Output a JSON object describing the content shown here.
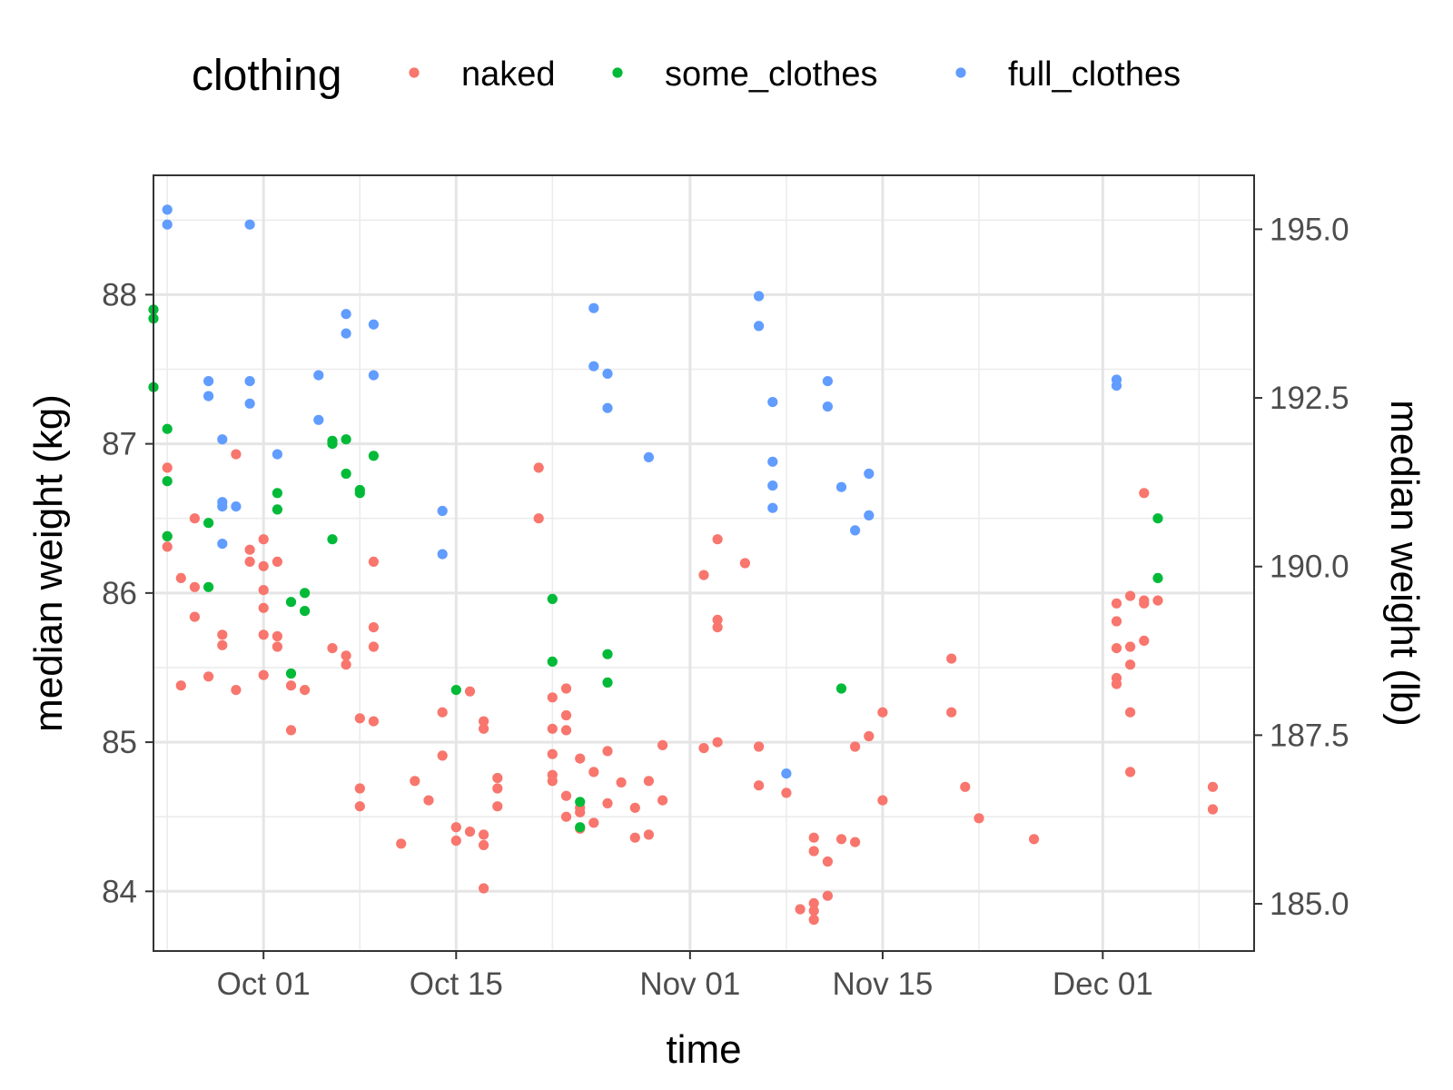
{
  "chart_data": {
    "type": "scatter",
    "xlabel": "time",
    "ylabel": "median weight (kg)",
    "y2label": "median weight (lb)",
    "legend": {
      "title": "clothing",
      "position": "top"
    },
    "grid": true,
    "xlim": [
      "2018-09-23",
      "2018-12-12"
    ],
    "ylim": [
      83.6,
      88.8
    ],
    "y2lim": [
      184.3,
      195.8
    ],
    "x_ticks": [
      {
        "date": "2018-10-01",
        "label": "Oct 01"
      },
      {
        "date": "2018-10-15",
        "label": "Oct 15"
      },
      {
        "date": "2018-11-01",
        "label": "Nov 01"
      },
      {
        "date": "2018-11-15",
        "label": "Nov 15"
      },
      {
        "date": "2018-12-01",
        "label": "Dec 01"
      }
    ],
    "x_minor_ticks": [
      "2018-09-24",
      "2018-10-08",
      "2018-10-22",
      "2018-11-08",
      "2018-11-22",
      "2018-12-08"
    ],
    "y_ticks": [
      84,
      85,
      86,
      87,
      88
    ],
    "y_tick_labels": [
      "84",
      "85",
      "86",
      "87",
      "88"
    ],
    "y_minor_ticks": [
      84.5,
      85.5,
      86.5,
      87.5,
      88.5
    ],
    "y2_ticks": [
      185.0,
      187.5,
      190.0,
      192.5,
      195.0
    ],
    "y2_tick_labels": [
      "185.0",
      "187.5",
      "190.0",
      "192.5",
      "195.0"
    ],
    "series": [
      {
        "name": "naked",
        "color": "#F8766D",
        "points": [
          [
            "2018-09-24",
            86.84
          ],
          [
            "2018-09-24",
            86.38
          ],
          [
            "2018-09-24",
            86.31
          ],
          [
            "2018-09-25",
            86.1
          ],
          [
            "2018-09-25",
            85.38
          ],
          [
            "2018-09-26",
            86.5
          ],
          [
            "2018-09-26",
            86.04
          ],
          [
            "2018-09-26",
            85.84
          ],
          [
            "2018-09-27",
            85.44
          ],
          [
            "2018-09-28",
            85.72
          ],
          [
            "2018-09-28",
            85.65
          ],
          [
            "2018-09-29",
            85.35
          ],
          [
            "2018-09-29",
            86.93
          ],
          [
            "2018-09-30",
            86.29
          ],
          [
            "2018-09-30",
            86.21
          ],
          [
            "2018-10-01",
            86.36
          ],
          [
            "2018-10-01",
            86.18
          ],
          [
            "2018-10-01",
            86.02
          ],
          [
            "2018-10-01",
            85.9
          ],
          [
            "2018-10-01",
            85.72
          ],
          [
            "2018-10-01",
            85.45
          ],
          [
            "2018-10-02",
            86.21
          ],
          [
            "2018-10-02",
            85.71
          ],
          [
            "2018-10-02",
            85.64
          ],
          [
            "2018-10-03",
            85.38
          ],
          [
            "2018-10-03",
            85.08
          ],
          [
            "2018-10-04",
            85.35
          ],
          [
            "2018-10-06",
            85.63
          ],
          [
            "2018-10-07",
            85.52
          ],
          [
            "2018-10-07",
            85.58
          ],
          [
            "2018-10-08",
            85.16
          ],
          [
            "2018-10-08",
            84.69
          ],
          [
            "2018-10-08",
            84.57
          ],
          [
            "2018-10-09",
            86.21
          ],
          [
            "2018-10-09",
            85.77
          ],
          [
            "2018-10-09",
            85.64
          ],
          [
            "2018-10-09",
            85.14
          ],
          [
            "2018-10-11",
            84.32
          ],
          [
            "2018-10-12",
            84.74
          ],
          [
            "2018-10-13",
            84.61
          ],
          [
            "2018-10-14",
            85.2
          ],
          [
            "2018-10-14",
            84.91
          ],
          [
            "2018-10-15",
            84.43
          ],
          [
            "2018-10-15",
            84.34
          ],
          [
            "2018-10-16",
            85.34
          ],
          [
            "2018-10-16",
            84.4
          ],
          [
            "2018-10-17",
            85.14
          ],
          [
            "2018-10-17",
            85.09
          ],
          [
            "2018-10-17",
            84.38
          ],
          [
            "2018-10-17",
            84.31
          ],
          [
            "2018-10-17",
            84.02
          ],
          [
            "2018-10-18",
            84.76
          ],
          [
            "2018-10-18",
            84.69
          ],
          [
            "2018-10-18",
            84.57
          ],
          [
            "2018-10-21",
            86.84
          ],
          [
            "2018-10-21",
            86.5
          ],
          [
            "2018-10-22",
            85.3
          ],
          [
            "2018-10-22",
            85.09
          ],
          [
            "2018-10-22",
            84.92
          ],
          [
            "2018-10-22",
            84.78
          ],
          [
            "2018-10-22",
            84.74
          ],
          [
            "2018-10-23",
            85.36
          ],
          [
            "2018-10-23",
            85.18
          ],
          [
            "2018-10-23",
            85.08
          ],
          [
            "2018-10-23",
            84.64
          ],
          [
            "2018-10-23",
            84.5
          ],
          [
            "2018-10-24",
            84.89
          ],
          [
            "2018-10-24",
            84.56
          ],
          [
            "2018-10-24",
            84.53
          ],
          [
            "2018-10-24",
            84.42
          ],
          [
            "2018-10-25",
            84.8
          ],
          [
            "2018-10-25",
            84.46
          ],
          [
            "2018-10-26",
            84.94
          ],
          [
            "2018-10-26",
            84.59
          ],
          [
            "2018-10-27",
            84.73
          ],
          [
            "2018-10-28",
            84.56
          ],
          [
            "2018-10-28",
            84.36
          ],
          [
            "2018-10-29",
            84.74
          ],
          [
            "2018-10-29",
            84.38
          ],
          [
            "2018-10-30",
            84.98
          ],
          [
            "2018-10-30",
            84.61
          ],
          [
            "2018-11-02",
            86.12
          ],
          [
            "2018-11-02",
            84.96
          ],
          [
            "2018-11-03",
            86.36
          ],
          [
            "2018-11-03",
            85.82
          ],
          [
            "2018-11-03",
            85.77
          ],
          [
            "2018-11-03",
            85.0
          ],
          [
            "2018-11-05",
            86.2
          ],
          [
            "2018-11-06",
            84.97
          ],
          [
            "2018-11-06",
            84.71
          ],
          [
            "2018-11-08",
            84.66
          ],
          [
            "2018-11-09",
            83.88
          ],
          [
            "2018-11-10",
            84.36
          ],
          [
            "2018-11-10",
            84.27
          ],
          [
            "2018-11-10",
            83.92
          ],
          [
            "2018-11-10",
            83.87
          ],
          [
            "2018-11-10",
            83.81
          ],
          [
            "2018-11-11",
            84.2
          ],
          [
            "2018-11-11",
            83.97
          ],
          [
            "2018-11-12",
            84.35
          ],
          [
            "2018-11-13",
            84.97
          ],
          [
            "2018-11-13",
            84.33
          ],
          [
            "2018-11-14",
            85.04
          ],
          [
            "2018-11-15",
            85.2
          ],
          [
            "2018-11-15",
            84.61
          ],
          [
            "2018-11-20",
            85.56
          ],
          [
            "2018-11-20",
            85.2
          ],
          [
            "2018-11-21",
            84.7
          ],
          [
            "2018-11-22",
            84.49
          ],
          [
            "2018-11-26",
            84.35
          ],
          [
            "2018-12-02",
            85.93
          ],
          [
            "2018-12-02",
            85.81
          ],
          [
            "2018-12-02",
            85.63
          ],
          [
            "2018-12-02",
            85.43
          ],
          [
            "2018-12-02",
            85.39
          ],
          [
            "2018-12-03",
            85.98
          ],
          [
            "2018-12-03",
            85.64
          ],
          [
            "2018-12-03",
            85.52
          ],
          [
            "2018-12-03",
            85.2
          ],
          [
            "2018-12-03",
            84.8
          ],
          [
            "2018-12-04",
            86.67
          ],
          [
            "2018-12-04",
            85.93
          ],
          [
            "2018-12-04",
            85.95
          ],
          [
            "2018-12-04",
            85.68
          ],
          [
            "2018-12-05",
            85.95
          ],
          [
            "2018-12-09",
            84.7
          ],
          [
            "2018-12-09",
            84.55
          ]
        ]
      },
      {
        "name": "some_clothes",
        "color": "#00BA38",
        "points": [
          [
            "2018-09-23",
            87.9
          ],
          [
            "2018-09-23",
            87.84
          ],
          [
            "2018-09-23",
            87.38
          ],
          [
            "2018-09-24",
            87.1
          ],
          [
            "2018-09-24",
            86.75
          ],
          [
            "2018-09-24",
            86.38
          ],
          [
            "2018-09-27",
            86.47
          ],
          [
            "2018-09-27",
            86.04
          ],
          [
            "2018-10-02",
            86.67
          ],
          [
            "2018-10-02",
            86.56
          ],
          [
            "2018-10-03",
            85.94
          ],
          [
            "2018-10-03",
            85.46
          ],
          [
            "2018-10-04",
            86.0
          ],
          [
            "2018-10-04",
            85.88
          ],
          [
            "2018-10-06",
            87.0
          ],
          [
            "2018-10-06",
            87.02
          ],
          [
            "2018-10-06",
            86.36
          ],
          [
            "2018-10-07",
            87.03
          ],
          [
            "2018-10-07",
            86.8
          ],
          [
            "2018-10-08",
            86.69
          ],
          [
            "2018-10-08",
            86.67
          ],
          [
            "2018-10-09",
            86.92
          ],
          [
            "2018-10-15",
            85.35
          ],
          [
            "2018-10-22",
            85.96
          ],
          [
            "2018-10-22",
            85.54
          ],
          [
            "2018-10-24",
            84.6
          ],
          [
            "2018-10-24",
            84.43
          ],
          [
            "2018-10-26",
            85.59
          ],
          [
            "2018-10-26",
            85.4
          ],
          [
            "2018-11-12",
            85.36
          ],
          [
            "2018-12-05",
            86.5
          ],
          [
            "2018-12-05",
            86.1
          ]
        ]
      },
      {
        "name": "full_clothes",
        "color": "#619CFF",
        "points": [
          [
            "2018-09-24",
            88.57
          ],
          [
            "2018-09-24",
            88.47
          ],
          [
            "2018-09-27",
            87.42
          ],
          [
            "2018-09-27",
            87.32
          ],
          [
            "2018-09-28",
            87.03
          ],
          [
            "2018-09-28",
            86.61
          ],
          [
            "2018-09-28",
            86.58
          ],
          [
            "2018-09-28",
            86.33
          ],
          [
            "2018-09-29",
            86.58
          ],
          [
            "2018-09-30",
            87.42
          ],
          [
            "2018-09-30",
            87.27
          ],
          [
            "2018-09-30",
            88.47
          ],
          [
            "2018-10-02",
            86.93
          ],
          [
            "2018-10-05",
            87.46
          ],
          [
            "2018-10-05",
            87.16
          ],
          [
            "2018-10-07",
            87.87
          ],
          [
            "2018-10-07",
            87.74
          ],
          [
            "2018-10-09",
            87.8
          ],
          [
            "2018-10-09",
            87.46
          ],
          [
            "2018-10-14",
            86.55
          ],
          [
            "2018-10-14",
            86.26
          ],
          [
            "2018-10-25",
            87.91
          ],
          [
            "2018-10-25",
            87.52
          ],
          [
            "2018-10-26",
            87.47
          ],
          [
            "2018-10-26",
            87.24
          ],
          [
            "2018-10-29",
            86.91
          ],
          [
            "2018-11-06",
            87.99
          ],
          [
            "2018-11-06",
            87.79
          ],
          [
            "2018-11-07",
            87.28
          ],
          [
            "2018-11-07",
            86.88
          ],
          [
            "2018-11-07",
            86.72
          ],
          [
            "2018-11-07",
            86.57
          ],
          [
            "2018-11-08",
            84.79
          ],
          [
            "2018-11-11",
            87.42
          ],
          [
            "2018-11-11",
            87.25
          ],
          [
            "2018-11-12",
            86.71
          ],
          [
            "2018-11-13",
            86.42
          ],
          [
            "2018-11-14",
            86.8
          ],
          [
            "2018-11-14",
            86.52
          ],
          [
            "2018-12-02",
            87.43
          ],
          [
            "2018-12-02",
            87.39
          ]
        ]
      }
    ]
  }
}
